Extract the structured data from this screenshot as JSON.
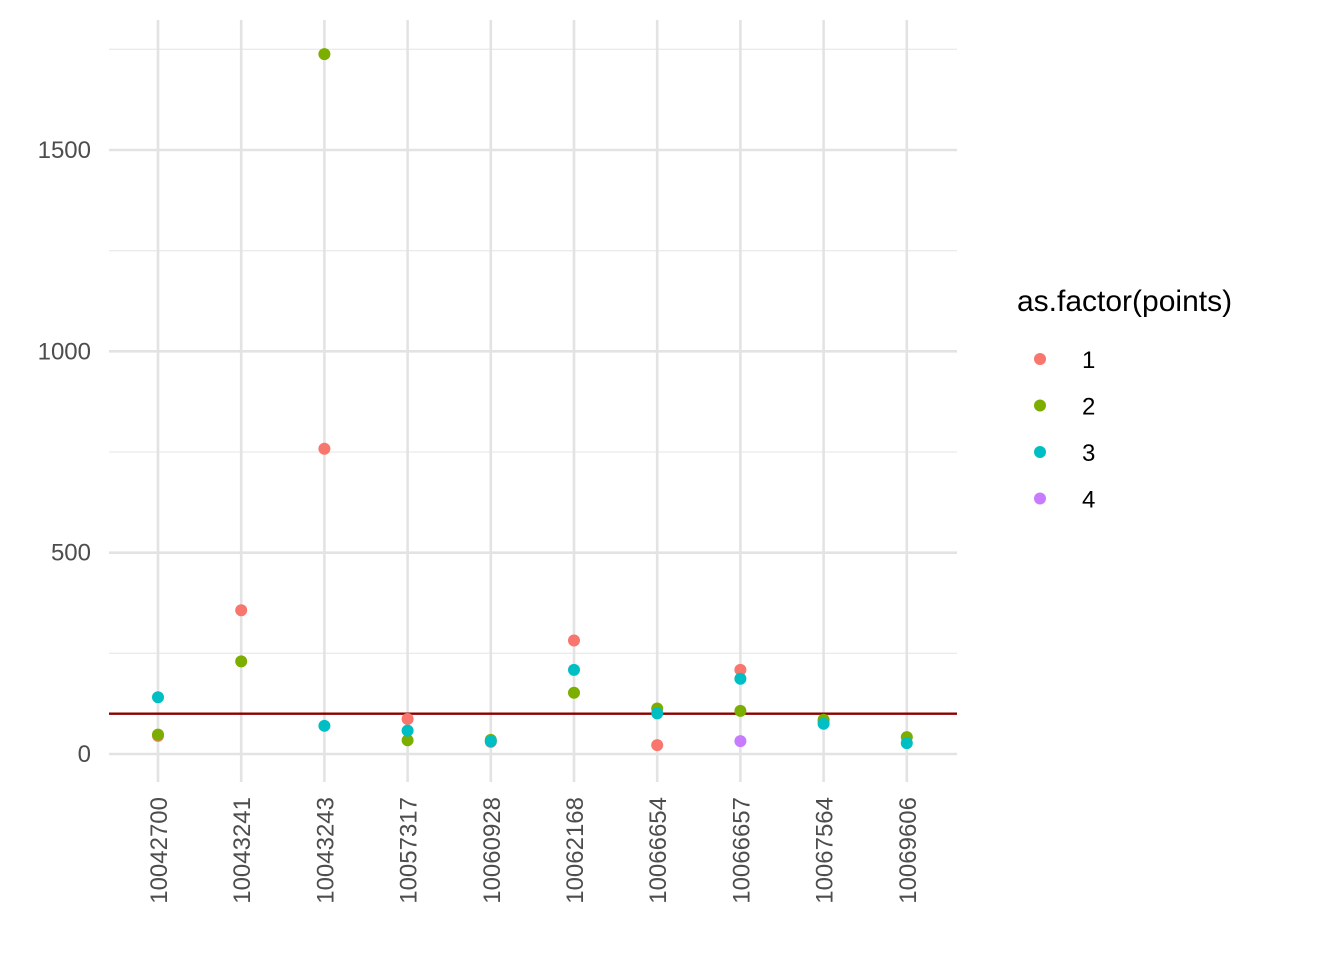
{
  "chart_data": {
    "type": "scatter",
    "title": "",
    "xlabel": "",
    "ylabel": "",
    "categories": [
      "10042700",
      "10043241",
      "10043243",
      "10057317",
      "10060928",
      "10062168",
      "10066654",
      "10066657",
      "10067564",
      "10069606"
    ],
    "ylim": [
      -70,
      1780
    ],
    "y_ticks": [
      0,
      500,
      1000,
      1500
    ],
    "y_tick_labels": [
      "0",
      "500",
      "1000",
      "1500"
    ],
    "grid": true,
    "reference_line": {
      "y": 100,
      "color": "#8B0000"
    },
    "legend": {
      "title": "as.factor(points)",
      "position": "right",
      "entries": [
        {
          "label": "1",
          "color": "#F8766D"
        },
        {
          "label": "2",
          "color": "#7CAE00"
        },
        {
          "label": "3",
          "color": "#00BFC4"
        },
        {
          "label": "4",
          "color": "#C77CFF"
        }
      ]
    },
    "series": [
      {
        "name": "1",
        "color": "#F8766D",
        "points": [
          {
            "x": "10042700",
            "y": 45
          },
          {
            "x": "10043241",
            "y": 357
          },
          {
            "x": "10043243",
            "y": 758
          },
          {
            "x": "10057317",
            "y": 87
          },
          {
            "x": "10060928",
            "y": 30
          },
          {
            "x": "10062168",
            "y": 282
          },
          {
            "x": "10066654",
            "y": 22
          },
          {
            "x": "10066657",
            "y": 209
          },
          {
            "x": "10067564",
            "y": 80
          }
        ]
      },
      {
        "name": "2",
        "color": "#7CAE00",
        "points": [
          {
            "x": "10042700",
            "y": 48
          },
          {
            "x": "10043241",
            "y": 230
          },
          {
            "x": "10043243",
            "y": 1738
          },
          {
            "x": "10057317",
            "y": 34
          },
          {
            "x": "10060928",
            "y": 35
          },
          {
            "x": "10062168",
            "y": 152
          },
          {
            "x": "10066654",
            "y": 113
          },
          {
            "x": "10066657",
            "y": 107
          },
          {
            "x": "10067564",
            "y": 85
          },
          {
            "x": "10069606",
            "y": 42
          }
        ]
      },
      {
        "name": "3",
        "color": "#00BFC4",
        "points": [
          {
            "x": "10042700",
            "y": 141
          },
          {
            "x": "10043243",
            "y": 70
          },
          {
            "x": "10057317",
            "y": 58
          },
          {
            "x": "10060928",
            "y": 32
          },
          {
            "x": "10062168",
            "y": 209
          },
          {
            "x": "10066654",
            "y": 101
          },
          {
            "x": "10066657",
            "y": 187
          },
          {
            "x": "10067564",
            "y": 75
          },
          {
            "x": "10069606",
            "y": 27
          }
        ]
      },
      {
        "name": "4",
        "color": "#C77CFF",
        "points": [
          {
            "x": "10066657",
            "y": 32
          }
        ]
      }
    ]
  }
}
